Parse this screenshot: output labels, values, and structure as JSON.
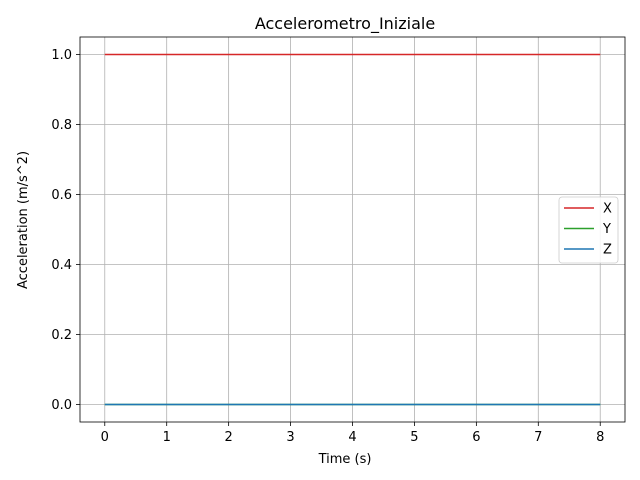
{
  "chart_data": {
    "type": "line",
    "title": "Accelerometro_Iniziale",
    "xlabel": "Time (s)",
    "ylabel": "Acceleration (m/s^2)",
    "xlim": [
      -0.4,
      8.4
    ],
    "ylim": [
      -0.05,
      1.05
    ],
    "xticks": [
      0,
      1,
      2,
      3,
      4,
      5,
      6,
      7,
      8
    ],
    "xtick_labels": [
      "0",
      "1",
      "2",
      "3",
      "4",
      "5",
      "6",
      "7",
      "8"
    ],
    "yticks": [
      0.0,
      0.2,
      0.4,
      0.6,
      0.8,
      1.0
    ],
    "ytick_labels": [
      "0.0",
      "0.2",
      "0.4",
      "0.6",
      "0.8",
      "1.0"
    ],
    "grid": true,
    "legend_position": "center-right",
    "series": [
      {
        "name": "X",
        "color": "#d62728",
        "x": [
          0,
          8
        ],
        "y": [
          1.0,
          1.0
        ]
      },
      {
        "name": "Y",
        "color": "#2ca02c",
        "x": [
          0,
          8
        ],
        "y": [
          0.0,
          0.0
        ]
      },
      {
        "name": "Z",
        "color": "#1f77b4",
        "x": [
          0,
          8
        ],
        "y": [
          0.0,
          0.0
        ]
      }
    ]
  }
}
